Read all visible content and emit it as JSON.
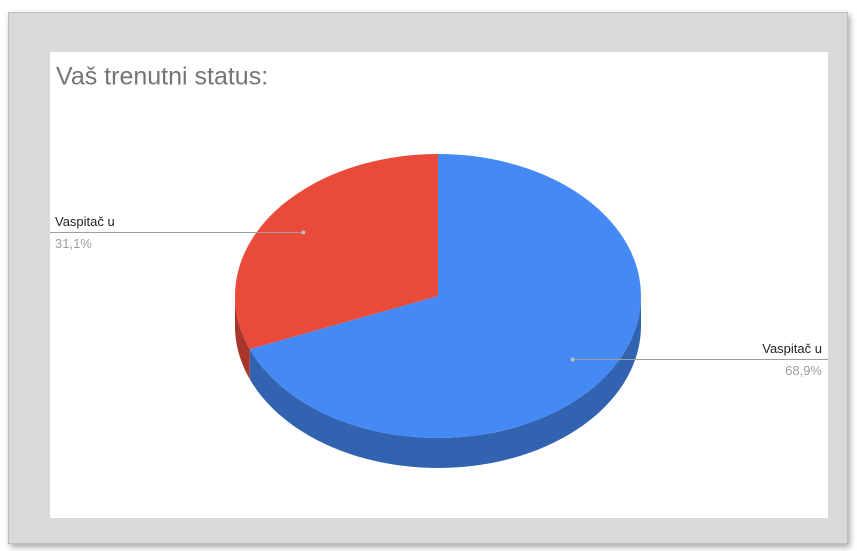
{
  "chart_data": {
    "type": "pie",
    "title": "Vaš trenutni status:",
    "categories": [
      "Vaspitač u",
      "Vaspitač u"
    ],
    "values": [
      68.9,
      31.1
    ],
    "value_labels": [
      "68,9%",
      "31,1%"
    ],
    "colors": [
      "#4589f4",
      "#ea4a3a"
    ]
  }
}
